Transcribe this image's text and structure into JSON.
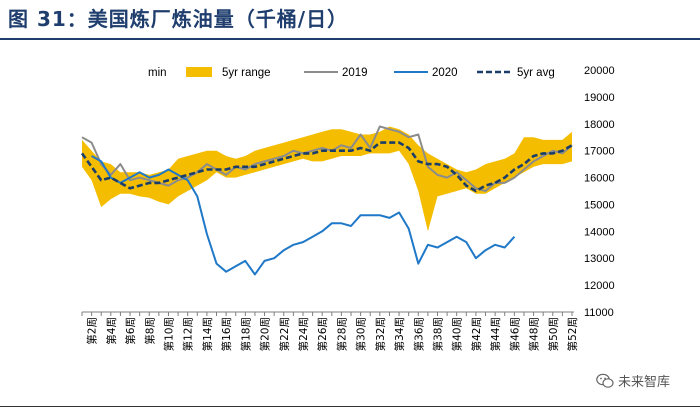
{
  "figure_title": "图 31：美国炼厂炼油量（千桶/日）",
  "watermark": "未来智库",
  "colors": {
    "band": "#f5bd00",
    "series_2019": "#8c8c8c",
    "series_2020": "#1f78c8",
    "series_avg": "#1a3d6a",
    "title": "#1f3e6e"
  },
  "chart_data": {
    "type": "line",
    "title": "美国炼厂炼油量（千桶/日）",
    "legend": [
      "min",
      "5yr range",
      "2019",
      "2020",
      "5yr avg"
    ],
    "legend_position": "top",
    "y_axis_position": "right",
    "ylim": [
      11000,
      20000
    ],
    "y_ticks": [
      11000,
      12000,
      13000,
      14000,
      15000,
      16000,
      17000,
      18000,
      19000,
      20000
    ],
    "x_tick_labels": [
      "第2周",
      "第4周",
      "第6周",
      "第8周",
      "第10周",
      "第12周",
      "第14周",
      "第16周",
      "第18周",
      "第20周",
      "第22周",
      "第24周",
      "第26周",
      "第28周",
      "第30周",
      "第32周",
      "第34周",
      "第36周",
      "第38周",
      "第40周",
      "第42周",
      "第44周",
      "第46周",
      "第48周",
      "第50周",
      "第52周"
    ],
    "weeks": [
      1,
      2,
      3,
      4,
      5,
      6,
      7,
      8,
      9,
      10,
      11,
      12,
      13,
      14,
      15,
      16,
      17,
      18,
      19,
      20,
      21,
      22,
      23,
      24,
      25,
      26,
      27,
      28,
      29,
      30,
      31,
      32,
      33,
      34,
      35,
      36,
      37,
      38,
      39,
      40,
      41,
      42,
      43,
      44,
      45,
      46,
      47,
      48,
      49,
      50,
      51,
      52
    ],
    "series": [
      {
        "name": "5yr range min",
        "values": [
          16400,
          15900,
          14900,
          15200,
          15400,
          15400,
          15300,
          15250,
          15100,
          15000,
          15300,
          15500,
          15700,
          15900,
          16200,
          16000,
          16000,
          16100,
          16200,
          16300,
          16400,
          16500,
          16600,
          16700,
          16600,
          16600,
          16700,
          16800,
          16800,
          16800,
          16900,
          16900,
          16900,
          17000,
          16500,
          15500,
          14000,
          15300,
          15400,
          15500,
          15600,
          15400,
          15400,
          15600,
          15800,
          16000,
          16200,
          16400,
          16500,
          16500,
          16500,
          16600
        ]
      },
      {
        "name": "5yr range max",
        "values": [
          17400,
          17000,
          16600,
          16500,
          16200,
          16200,
          16200,
          16100,
          16200,
          16300,
          16700,
          16800,
          16900,
          17000,
          17000,
          16800,
          16700,
          16800,
          17000,
          17100,
          17200,
          17300,
          17400,
          17500,
          17600,
          17700,
          17800,
          17800,
          17700,
          17600,
          17600,
          17700,
          17900,
          17800,
          17600,
          17200,
          16900,
          16700,
          16500,
          16300,
          16200,
          16300,
          16500,
          16600,
          16700,
          16900,
          17500,
          17500,
          17400,
          17400,
          17400,
          17700
        ]
      },
      {
        "name": "2019",
        "values": [
          17500,
          17300,
          16500,
          16100,
          16500,
          15900,
          16000,
          15900,
          15800,
          15700,
          15900,
          16000,
          16200,
          16500,
          16300,
          16100,
          16400,
          16300,
          16500,
          16600,
          16700,
          16800,
          17000,
          16900,
          17000,
          17100,
          17000,
          17200,
          17100,
          17600,
          17100,
          17900,
          17800,
          17700,
          17500,
          17600,
          16400,
          16100,
          16000,
          16200,
          15900,
          15600,
          15500,
          15800,
          15800,
          16000,
          16300,
          16600,
          16800,
          17000,
          16900,
          17200
        ]
      },
      {
        "name": "2020",
        "values": [
          null,
          16800,
          16600,
          16000,
          15800,
          16000,
          16200,
          16000,
          16100,
          16300,
          16100,
          15900,
          15300,
          13900,
          12800,
          12500,
          12700,
          12900,
          12400,
          12900,
          13000,
          13300,
          13500,
          13600,
          13800,
          14000,
          14300,
          14300,
          14200,
          14600,
          14600,
          14600,
          14500,
          14700,
          14100,
          12800,
          13500,
          13400,
          13600,
          13800,
          13600,
          13000,
          13300,
          13500,
          13400,
          13800,
          null,
          null,
          null,
          null,
          null,
          null
        ]
      },
      {
        "name": "5yr avg",
        "values": [
          16900,
          16400,
          15900,
          16000,
          15800,
          15600,
          15700,
          15800,
          15800,
          15900,
          16000,
          16100,
          16200,
          16300,
          16300,
          16300,
          16400,
          16400,
          16400,
          16500,
          16600,
          16700,
          16800,
          16900,
          16900,
          17000,
          17000,
          17000,
          17000,
          17100,
          17000,
          17300,
          17300,
          17300,
          17100,
          16600,
          16500,
          16500,
          16400,
          16100,
          15700,
          15500,
          15700,
          15800,
          16000,
          16300,
          16500,
          16800,
          16900,
          16900,
          17000,
          17200
        ]
      }
    ]
  }
}
